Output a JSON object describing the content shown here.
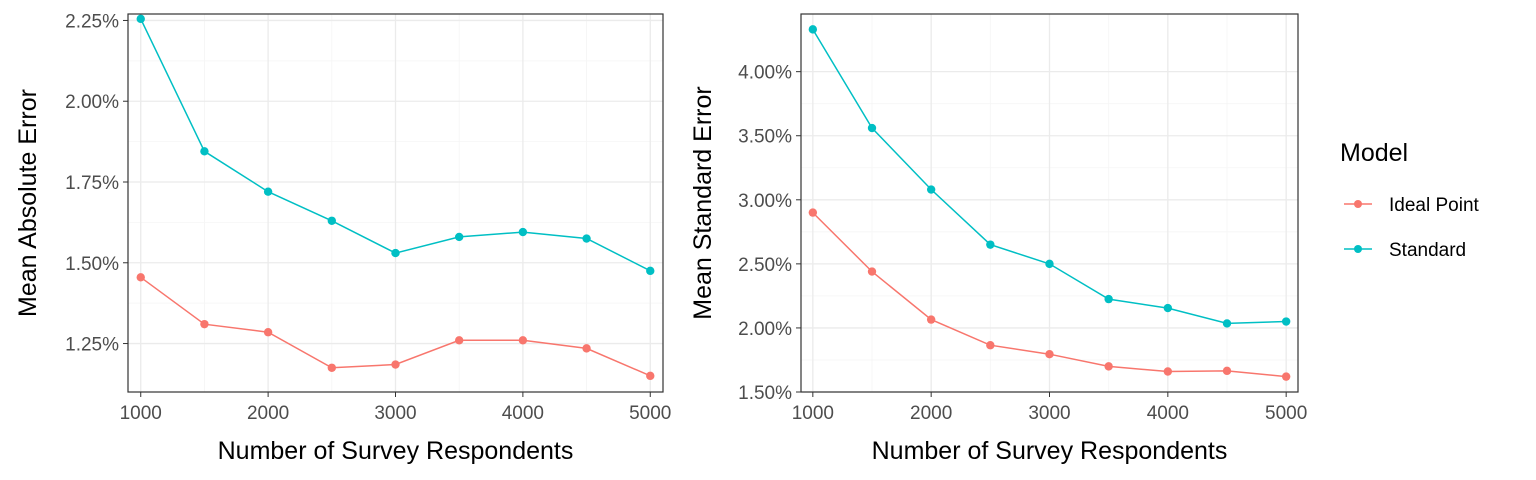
{
  "legend": {
    "title": "Model",
    "entries": [
      {
        "label": "Ideal Point",
        "color": "#F8766D"
      },
      {
        "label": "Standard",
        "color": "#00BFC4"
      }
    ]
  },
  "chart_data": [
    {
      "type": "line",
      "xlabel": "Number of Survey Respondents",
      "ylabel": "Mean Absolute Error",
      "x": [
        1000,
        1500,
        2000,
        2500,
        3000,
        3500,
        4000,
        4500,
        5000
      ],
      "xlim": [
        900,
        5100
      ],
      "ylim": [
        1.1,
        2.27
      ],
      "xticks": [
        1000,
        2000,
        3000,
        4000,
        5000
      ],
      "yticks": [
        1.25,
        1.5,
        1.75,
        2.0,
        2.25
      ],
      "ytick_labels": [
        "1.25%",
        "1.50%",
        "1.75%",
        "2.00%",
        "2.25%"
      ],
      "grid": true,
      "series": [
        {
          "name": "Ideal Point",
          "color": "#F8766D",
          "values": [
            1.455,
            1.31,
            1.285,
            1.175,
            1.185,
            1.26,
            1.26,
            1.235,
            1.15
          ]
        },
        {
          "name": "Standard",
          "color": "#00BFC4",
          "values": [
            2.255,
            1.845,
            1.72,
            1.63,
            1.53,
            1.58,
            1.595,
            1.575,
            1.475
          ]
        }
      ]
    },
    {
      "type": "line",
      "xlabel": "Number of Survey Respondents",
      "ylabel": "Mean Standard Error",
      "x": [
        1000,
        1500,
        2000,
        2500,
        3000,
        3500,
        4000,
        4500,
        5000
      ],
      "xlim": [
        900,
        5100
      ],
      "ylim": [
        1.5,
        4.45
      ],
      "xticks": [
        1000,
        2000,
        3000,
        4000,
        5000
      ],
      "yticks": [
        1.5,
        2.0,
        2.5,
        3.0,
        3.5,
        4.0
      ],
      "ytick_labels": [
        "1.50%",
        "2.00%",
        "2.50%",
        "3.00%",
        "3.50%",
        "4.00%"
      ],
      "grid": true,
      "series": [
        {
          "name": "Ideal Point",
          "color": "#F8766D",
          "values": [
            2.9,
            2.44,
            2.065,
            1.865,
            1.795,
            1.7,
            1.66,
            1.665,
            1.62
          ]
        },
        {
          "name": "Standard",
          "color": "#00BFC4",
          "values": [
            4.33,
            3.56,
            3.08,
            2.65,
            2.5,
            2.225,
            2.155,
            2.035,
            2.05
          ]
        }
      ]
    }
  ]
}
